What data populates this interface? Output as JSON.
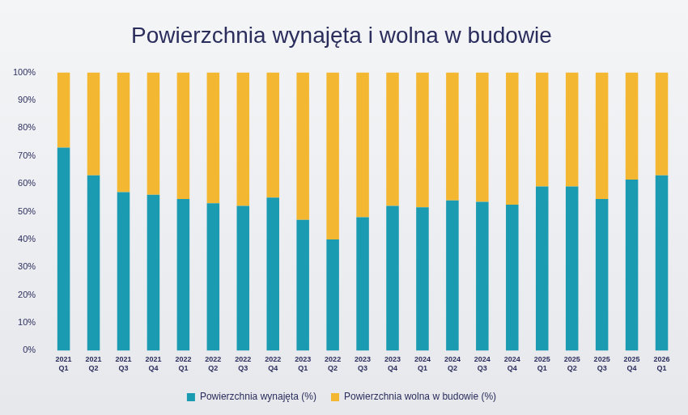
{
  "chart_data": {
    "type": "bar",
    "title": "Powierzchnia wynajęta i wolna w budowie",
    "categories": [
      "2021 Q1",
      "2021 Q2",
      "2021 Q3",
      "2021 Q4",
      "2022 Q1",
      "2022 Q2",
      "2022 Q3",
      "2022 Q4",
      "2023 Q1",
      "2022 Q2",
      "2023 Q3",
      "2023 Q4",
      "2024 Q1",
      "2024 Q2",
      "2024 Q3",
      "2024 Q4",
      "2025 Q1",
      "2025 Q2",
      "2025 Q3",
      "2025 Q4",
      "2026 Q1"
    ],
    "series": [
      {
        "name": "Powierzchnia wynajęta (%)",
        "color": "#1b9bb1",
        "values": [
          73,
          63,
          57,
          56,
          54.5,
          53,
          52,
          55,
          47,
          40,
          48,
          52,
          51.5,
          54,
          53.5,
          52.5,
          59,
          59,
          54.5,
          61.5,
          63
        ]
      },
      {
        "name": "Powierzchnia wolna w budowie (%)",
        "color": "#f4b731",
        "values": [
          27,
          37,
          43,
          44,
          45.5,
          47,
          48,
          45,
          53,
          60,
          52,
          48,
          48.5,
          46,
          46.5,
          47.5,
          41,
          41,
          45.5,
          38.5,
          37
        ]
      }
    ],
    "ylim": [
      0,
      100
    ],
    "yticks": [
      {
        "value": 0,
        "label": "0%"
      },
      {
        "value": 10,
        "label": "10%"
      },
      {
        "value": 20,
        "label": "20%"
      },
      {
        "value": 30,
        "label": "30%"
      },
      {
        "value": 40,
        "label": "40%"
      },
      {
        "value": 50,
        "label": "50%"
      },
      {
        "value": 60,
        "label": "60%"
      },
      {
        "value": 70,
        "label": "70%"
      },
      {
        "value": 80,
        "label": "80%"
      },
      {
        "value": 90,
        "label": "90%"
      },
      {
        "value": 100,
        "label": "100%"
      }
    ],
    "stacked": true,
    "grid": false,
    "legend": "bottom"
  }
}
